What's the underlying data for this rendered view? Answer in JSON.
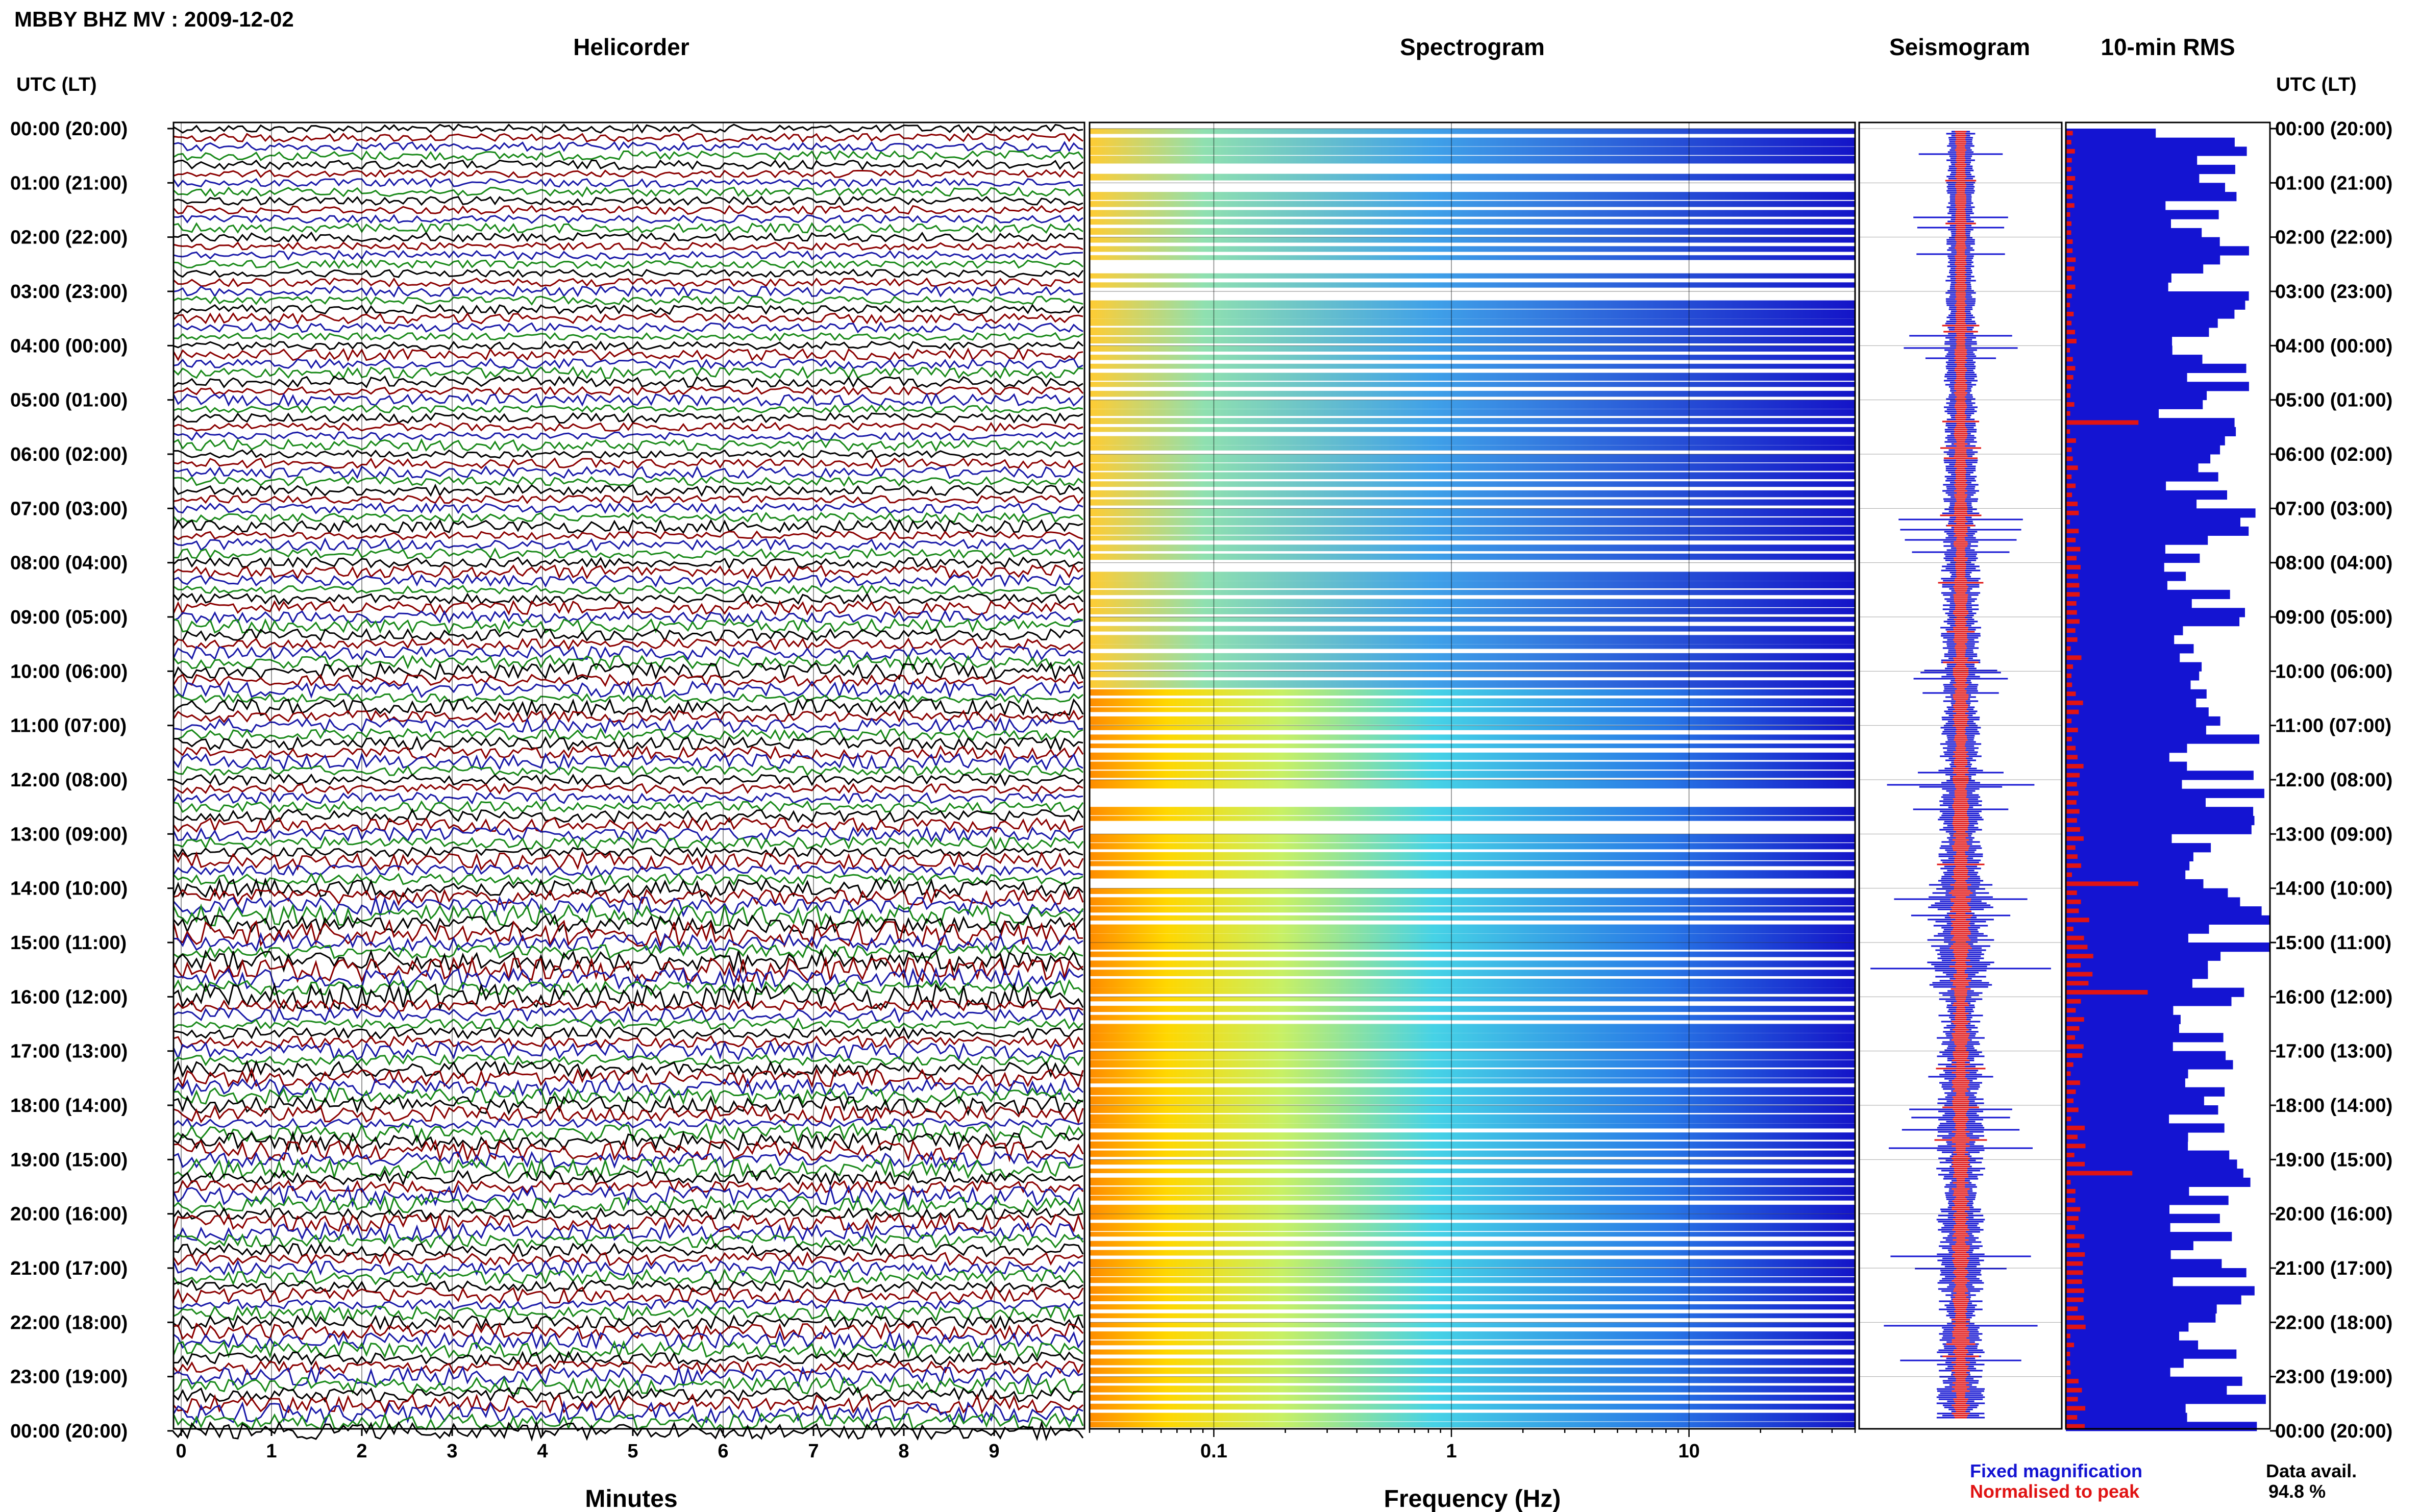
{
  "header": {
    "title": "MBBY BHZ MV : 2009-12-02"
  },
  "axis_headers": {
    "left": "UTC (LT)",
    "right": "UTC (LT)"
  },
  "colors": {
    "trace_cycle": [
      "#000000",
      "#8b0000",
      "#1a1aa8",
      "#1a8a1a"
    ],
    "fixed_magnification": "#1414d2",
    "normalised_to_peak": "#e01414",
    "spectrogram_low": "#1414c8",
    "spectrogram_high": "#ff8c00"
  },
  "legend": {
    "fixed_magnification": "Fixed magnification",
    "normalised_to_peak": "Normalised to peak",
    "data_avail_label": "Data avail.",
    "data_avail_value": "94.8 %"
  },
  "chart_data": [
    {
      "type": "line",
      "panel": "helicorder",
      "title": "Helicorder",
      "xlabel": "Minutes",
      "xlim": [
        0,
        10
      ],
      "x_ticks": [
        "0",
        "1",
        "2",
        "3",
        "4",
        "5",
        "6",
        "7",
        "8",
        "9"
      ],
      "rows_per_hour": 6,
      "y_tick_labels": [
        "00:00 (20:00)",
        "01:00 (21:00)",
        "02:00 (22:00)",
        "03:00 (23:00)",
        "04:00 (00:00)",
        "05:00 (01:00)",
        "06:00 (02:00)",
        "07:00 (03:00)",
        "08:00 (04:00)",
        "09:00 (05:00)",
        "10:00 (06:00)",
        "11:00 (07:00)",
        "12:00 (08:00)",
        "13:00 (09:00)",
        "14:00 (10:00)",
        "15:00 (11:00)",
        "16:00 (12:00)",
        "17:00 (13:00)",
        "18:00 (14:00)",
        "19:00 (15:00)",
        "20:00 (16:00)",
        "21:00 (17:00)",
        "22:00 (18:00)",
        "23:00 (19:00)",
        "00:00 (20:00)"
      ],
      "grid": true
    },
    {
      "type": "heatmap",
      "panel": "spectrogram",
      "title": "Spectrogram",
      "xlabel": "Frequency (Hz)",
      "x_scale": "log",
      "xlim": [
        0.03,
        50
      ],
      "x_ticks": [
        "0.1",
        "1",
        "10"
      ],
      "grid": true
    },
    {
      "type": "line",
      "panel": "seismogram",
      "title": "Seismogram",
      "series": [
        {
          "name": "Fixed magnification"
        },
        {
          "name": "Normalised to peak"
        }
      ]
    },
    {
      "type": "bar",
      "panel": "rms",
      "title": "10-min RMS",
      "orientation": "horizontal",
      "series": [
        {
          "name": "Fixed magnification"
        },
        {
          "name": "Normalised to peak"
        }
      ]
    }
  ]
}
